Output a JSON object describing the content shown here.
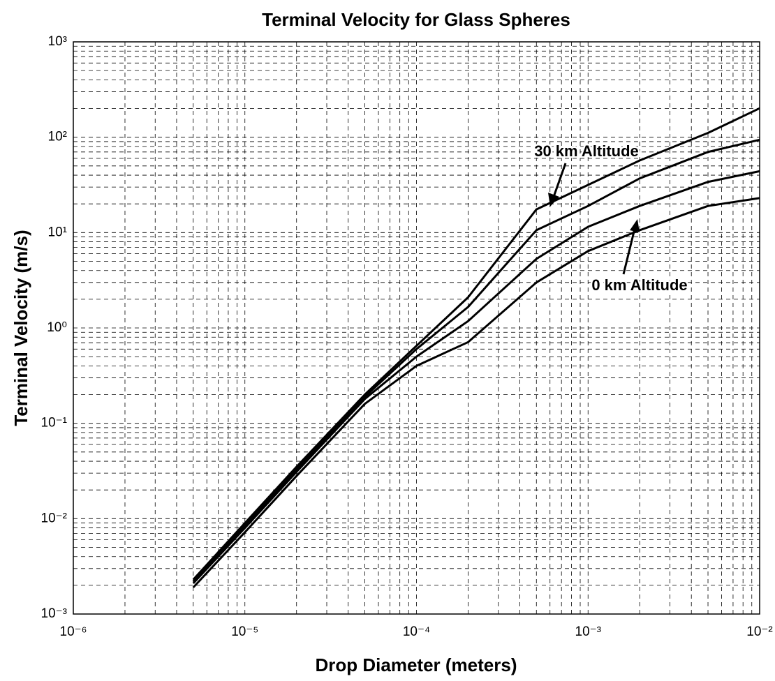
{
  "chart_data": {
    "type": "line",
    "title": "Terminal Velocity for Glass Spheres",
    "xlabel": "Drop Diameter (meters)",
    "ylabel": "Terminal Velocity (m/s)",
    "xscale": "log",
    "yscale": "log",
    "grid": true,
    "minor_grid": true,
    "xlim": [
      1e-06,
      0.01
    ],
    "ylim": [
      0.001,
      1000
    ],
    "xticks": [
      {
        "value": 1e-06,
        "label": "10⁻⁶"
      },
      {
        "value": 1e-05,
        "label": "10⁻⁵"
      },
      {
        "value": 0.0001,
        "label": "10⁻⁴"
      },
      {
        "value": 0.001,
        "label": "10⁻³"
      },
      {
        "value": 0.01,
        "label": "10⁻²"
      }
    ],
    "yticks": [
      {
        "value": 0.001,
        "label": "10⁻³"
      },
      {
        "value": 0.01,
        "label": "10⁻²"
      },
      {
        "value": 0.1,
        "label": "10⁻¹"
      },
      {
        "value": 1,
        "label": "10⁰"
      },
      {
        "value": 10,
        "label": "10¹"
      },
      {
        "value": 100,
        "label": "10²"
      },
      {
        "value": 1000,
        "label": "10³"
      }
    ],
    "x": [
      5e-06,
      1e-05,
      2e-05,
      5e-05,
      0.0001,
      0.0002,
      0.0005,
      0.001,
      0.002,
      0.005,
      0.01
    ],
    "series": [
      {
        "color": "#000000",
        "values": [
          0.0023,
          0.009,
          0.035,
          0.2,
          0.65,
          2.1,
          17.5,
          31.6,
          57,
          111,
          201
        ]
      },
      {
        "color": "#000000",
        "values": [
          0.0022,
          0.0085,
          0.033,
          0.19,
          0.6,
          1.66,
          10.6,
          19,
          37,
          70,
          94
        ]
      },
      {
        "color": "#000000",
        "values": [
          0.0021,
          0.008,
          0.031,
          0.18,
          0.5,
          1.18,
          5.3,
          11.5,
          19,
          34,
          44
        ]
      },
      {
        "color": "#000000",
        "values": [
          0.0019,
          0.0072,
          0.028,
          0.16,
          0.4,
          0.71,
          3.0,
          6.4,
          10.6,
          19,
          23
        ]
      }
    ],
    "annotations": [
      "30 km Altitude",
      "0 km Altitude"
    ]
  }
}
